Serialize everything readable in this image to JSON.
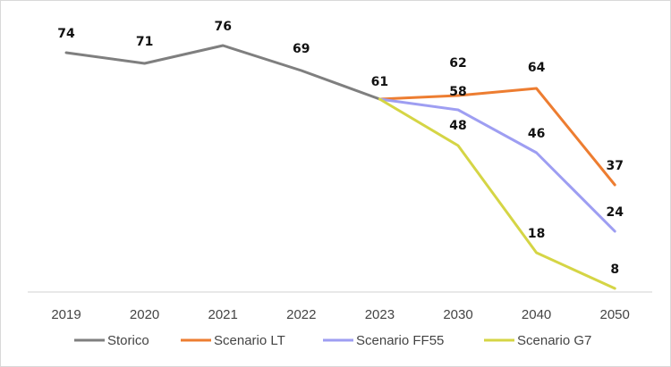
{
  "chart_data": {
    "type": "line",
    "title": "",
    "xlabel": "",
    "ylabel": "",
    "categories": [
      "2019",
      "2020",
      "2021",
      "2022",
      "2023",
      "2030",
      "2040",
      "2050"
    ],
    "ylim": [
      0,
      80
    ],
    "grid": false,
    "legend_position": "bottom",
    "series": [
      {
        "name": "Storico",
        "color": "#7f7f7f",
        "values": [
          74,
          71,
          76,
          69,
          61,
          null,
          null,
          null
        ]
      },
      {
        "name": "Scenario LT",
        "color": "#ed7d31",
        "values": [
          null,
          null,
          null,
          null,
          61,
          62,
          64,
          37
        ]
      },
      {
        "name": "Scenario FF55",
        "color": "#9e9ef2",
        "values": [
          null,
          null,
          null,
          null,
          61,
          58,
          46,
          24
        ]
      },
      {
        "name": "Scenario G7",
        "color": "#d5d545",
        "values": [
          null,
          null,
          null,
          null,
          61,
          48,
          18,
          8
        ]
      }
    ],
    "data_labels": [
      {
        "series": 0,
        "index": 0,
        "text": "74"
      },
      {
        "series": 0,
        "index": 1,
        "text": "71"
      },
      {
        "series": 0,
        "index": 2,
        "text": "76"
      },
      {
        "series": 0,
        "index": 3,
        "text": "69"
      },
      {
        "series": 0,
        "index": 4,
        "text": "61"
      },
      {
        "series": 1,
        "index": 5,
        "text": "62"
      },
      {
        "series": 1,
        "index": 6,
        "text": "64"
      },
      {
        "series": 1,
        "index": 7,
        "text": "37"
      },
      {
        "series": 2,
        "index": 5,
        "text": "58"
      },
      {
        "series": 2,
        "index": 6,
        "text": "46"
      },
      {
        "series": 2,
        "index": 7,
        "text": "24"
      },
      {
        "series": 3,
        "index": 5,
        "text": "48"
      },
      {
        "series": 3,
        "index": 6,
        "text": "18"
      },
      {
        "series": 3,
        "index": 7,
        "text": "8"
      }
    ]
  }
}
